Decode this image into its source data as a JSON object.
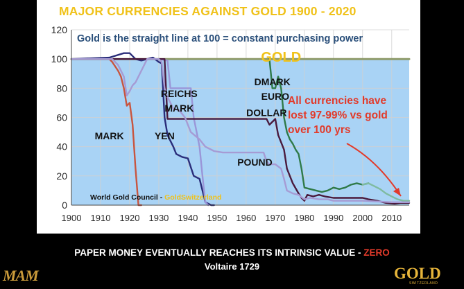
{
  "title": "MAJOR CURRENCIES AGAINST GOLD  1900 - 2020",
  "footer": {
    "main": "PAPER MONEY EVENTUALLY REACHES ITS INTRINSIC VALUE - ",
    "highlight": "ZERO",
    "attribution": "Voltaire 1729"
  },
  "logos": {
    "left": "MAM",
    "right": "GOLD",
    "right_sub": "SWITZERLAND"
  },
  "colors": {
    "title": "#f0c21a",
    "plot_bg": "#a9d3f5",
    "gold_line": "#8f9b6b",
    "highlight": "#e23a2a",
    "annotation": "#e23a2a"
  },
  "chart_data": {
    "type": "line",
    "xlim": [
      1900,
      2016
    ],
    "ylim": [
      0,
      120
    ],
    "x_ticks": [
      1900,
      1910,
      1920,
      1930,
      1940,
      1950,
      1960,
      1970,
      1980,
      1990,
      2000,
      2010
    ],
    "y_ticks": [
      0,
      20,
      40,
      60,
      80,
      100,
      120
    ],
    "grid": true,
    "subtitle": "Gold is the straight line at 100 = constant purchasing power",
    "gold_label": "GOLD",
    "annotation": [
      "All currencies have",
      "lost 97-99% vs gold",
      "over 100 yrs"
    ],
    "source": "World Gold Council - ",
    "source_highlight": "GoldSwitzerland",
    "series": [
      {
        "name": "GOLD",
        "color": "#8f9b6b",
        "points": [
          [
            1900,
            100
          ],
          [
            2016,
            100
          ]
        ]
      },
      {
        "name": "MARK",
        "color": "#c8553f",
        "label_pos": [
          1913,
          45
        ],
        "points": [
          [
            1900,
            100
          ],
          [
            1913,
            100
          ],
          [
            1914,
            98
          ],
          [
            1915,
            95
          ],
          [
            1916,
            92
          ],
          [
            1917,
            88
          ],
          [
            1918,
            80
          ],
          [
            1919,
            68
          ],
          [
            1920,
            70
          ],
          [
            1921,
            55
          ],
          [
            1922,
            25
          ],
          [
            1923,
            0
          ],
          [
            1924,
            0
          ]
        ]
      },
      {
        "name": "YEN",
        "color": "#2a2d7a",
        "label_pos": [
          1932,
          45
        ],
        "points": [
          [
            1900,
            100
          ],
          [
            1913,
            101
          ],
          [
            1918,
            104
          ],
          [
            1920,
            104
          ],
          [
            1922,
            100
          ],
          [
            1924,
            99
          ],
          [
            1926,
            100
          ],
          [
            1928,
            101
          ],
          [
            1930,
            98
          ],
          [
            1931,
            97
          ],
          [
            1932,
            60
          ],
          [
            1933,
            48
          ],
          [
            1935,
            40
          ],
          [
            1936,
            35
          ],
          [
            1938,
            33
          ],
          [
            1940,
            32
          ],
          [
            1942,
            20
          ],
          [
            1944,
            18
          ],
          [
            1945,
            10
          ],
          [
            1946,
            2
          ],
          [
            1948,
            0
          ],
          [
            1949,
            0
          ]
        ]
      },
      {
        "name": "REICHS MARK",
        "color": "#9a96d8",
        "label_pos": [
          1937,
          74
        ],
        "points": [
          [
            1924,
            100
          ],
          [
            1930,
            100
          ],
          [
            1933,
            99
          ],
          [
            1934,
            80
          ],
          [
            1935,
            80
          ],
          [
            1938,
            80
          ],
          [
            1941,
            80
          ],
          [
            1942,
            60
          ],
          [
            1944,
            40
          ],
          [
            1945,
            20
          ],
          [
            1946,
            2
          ],
          [
            1947,
            0
          ]
        ]
      },
      {
        "name": "DMARK",
        "color": "#2f7a48",
        "label_pos": [
          1969,
          82
        ],
        "points": [
          [
            1968,
            100
          ],
          [
            1969,
            80
          ],
          [
            1970,
            80
          ],
          [
            1971,
            88
          ],
          [
            1972,
            80
          ],
          [
            1973,
            60
          ],
          [
            1974,
            50
          ],
          [
            1975,
            45
          ],
          [
            1976,
            42
          ],
          [
            1977,
            38
          ],
          [
            1978,
            35
          ],
          [
            1979,
            25
          ],
          [
            1980,
            12
          ],
          [
            1982,
            11
          ],
          [
            1984,
            10
          ],
          [
            1986,
            9
          ],
          [
            1988,
            10
          ],
          [
            1990,
            12
          ],
          [
            1992,
            11
          ],
          [
            1994,
            12
          ],
          [
            1996,
            14
          ],
          [
            1998,
            15
          ],
          [
            2000,
            14
          ],
          [
            2002,
            15
          ]
        ]
      },
      {
        "name": "EURO",
        "color": "#7fbba0",
        "label_pos": [
          1970,
          72
        ],
        "points": [
          [
            2000,
            14
          ],
          [
            2002,
            15
          ],
          [
            2004,
            13
          ],
          [
            2006,
            11
          ],
          [
            2008,
            8
          ],
          [
            2010,
            6
          ],
          [
            2012,
            4
          ],
          [
            2014,
            3
          ],
          [
            2016,
            3
          ]
        ]
      },
      {
        "name": "DOLLAR",
        "color": "#4a1a3d",
        "label_pos": [
          1967,
          61
        ],
        "points": [
          [
            1900,
            100
          ],
          [
            1932,
            100
          ],
          [
            1933,
            59
          ],
          [
            1950,
            59
          ],
          [
            1960,
            59
          ],
          [
            1967,
            59
          ],
          [
            1968,
            55
          ],
          [
            1970,
            59
          ],
          [
            1971,
            48
          ],
          [
            1972,
            43
          ],
          [
            1973,
            38
          ],
          [
            1974,
            25
          ],
          [
            1975,
            20
          ],
          [
            1976,
            15
          ],
          [
            1978,
            8
          ],
          [
            1979,
            5
          ],
          [
            1980,
            3
          ],
          [
            1981,
            7
          ],
          [
            1983,
            6
          ],
          [
            1985,
            7
          ],
          [
            1987,
            6
          ],
          [
            1990,
            5
          ],
          [
            1993,
            5
          ],
          [
            1995,
            5
          ],
          [
            1998,
            5
          ],
          [
            2000,
            5
          ],
          [
            2002,
            4
          ],
          [
            2005,
            3
          ],
          [
            2008,
            1.5
          ],
          [
            2011,
            1
          ],
          [
            2013,
            1.5
          ],
          [
            2016,
            1.5
          ]
        ]
      },
      {
        "name": "POUND",
        "color": "#a69bd4",
        "label_pos": [
          1963,
          27
        ],
        "points": [
          [
            1900,
            100
          ],
          [
            1914,
            100
          ],
          [
            1916,
            96
          ],
          [
            1918,
            88
          ],
          [
            1919,
            75
          ],
          [
            1920,
            78
          ],
          [
            1921,
            82
          ],
          [
            1922,
            84
          ],
          [
            1925,
            96
          ],
          [
            1926,
            100
          ],
          [
            1930,
            100
          ],
          [
            1931,
            98
          ],
          [
            1932,
            80
          ],
          [
            1933,
            74
          ],
          [
            1935,
            66
          ],
          [
            1937,
            65
          ],
          [
            1939,
            60
          ],
          [
            1941,
            50
          ],
          [
            1944,
            45
          ],
          [
            1946,
            40
          ],
          [
            1949,
            37
          ],
          [
            1952,
            36
          ],
          [
            1960,
            36
          ],
          [
            1966,
            36
          ],
          [
            1967,
            30
          ],
          [
            1968,
            28
          ],
          [
            1970,
            28
          ],
          [
            1972,
            25
          ],
          [
            1973,
            18
          ],
          [
            1974,
            10
          ],
          [
            1976,
            8
          ],
          [
            1978,
            7
          ],
          [
            1980,
            4
          ],
          [
            1982,
            5
          ],
          [
            1985,
            4
          ],
          [
            1988,
            4
          ],
          [
            1990,
            3
          ],
          [
            1995,
            3
          ],
          [
            2000,
            3
          ],
          [
            2005,
            2.5
          ],
          [
            2010,
            2
          ],
          [
            2016,
            2
          ]
        ]
      }
    ]
  }
}
